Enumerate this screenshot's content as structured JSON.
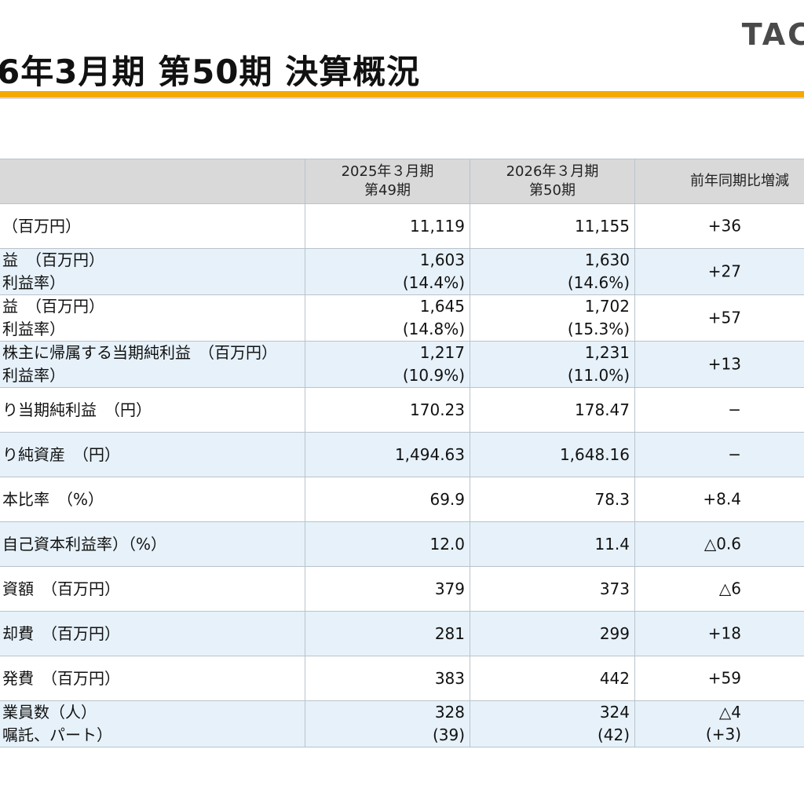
{
  "header": {
    "title": "6年3月期 第50期 決算概況",
    "logo_text": "TAC"
  },
  "table": {
    "columns": {
      "prev_line1": "2025年３月期",
      "prev_line2": "第49期",
      "curr_line1": "2026年３月期",
      "curr_line2": "第50期",
      "diff": "前年同期比増減"
    },
    "rows": [
      {
        "label": "（百万円）",
        "label2": "",
        "prev": "11,119",
        "prev2": "",
        "curr": "11,155",
        "curr2": "",
        "diff": "+36",
        "diff2": "",
        "diff_partial": "+"
      },
      {
        "label": "益　（百万円）",
        "label2": "利益率）",
        "prev": "1,603",
        "prev2": "(14.4%)",
        "curr": "1,630",
        "curr2": "(14.6%)",
        "diff": "+27",
        "diff2": "",
        "diff_partial": "+"
      },
      {
        "label": "益　（百万円）",
        "label2": "利益率）",
        "prev": "1,645",
        "prev2": "(14.8%)",
        "curr": "1,702",
        "curr2": "(15.3%)",
        "diff": "+57",
        "diff2": "",
        "diff_partial": "+"
      },
      {
        "label": "株主に帰属する当期純利益　（百万円）",
        "label2": "利益率）",
        "prev": "1,217",
        "prev2": "(10.9%)",
        "curr": "1,231",
        "curr2": "(11.0%)",
        "diff": "+13",
        "diff2": "",
        "diff_partial": "+"
      },
      {
        "label": "り当期純利益　（円）",
        "label2": "",
        "prev": "170.23",
        "prev2": "",
        "curr": "178.47",
        "curr2": "",
        "diff": "−",
        "diff2": "",
        "diff_partial": ""
      },
      {
        "label": "り純資産　（円）",
        "label2": "",
        "prev": "1,494.63",
        "prev2": "",
        "curr": "1,648.16",
        "curr2": "",
        "diff": "−",
        "diff2": "",
        "diff_partial": ""
      },
      {
        "label": "本比率　（%）",
        "label2": "",
        "prev": "69.9",
        "prev2": "",
        "curr": "78.3",
        "curr2": "",
        "diff": "+8.4",
        "diff2": "",
        "diff_partial": ""
      },
      {
        "label": "自己資本利益率）（%）",
        "label2": "",
        "prev": "12.0",
        "prev2": "",
        "curr": "11.4",
        "curr2": "",
        "diff": "△0.6",
        "diff2": "",
        "diff_partial": ""
      },
      {
        "label": "資額　（百万円）",
        "label2": "",
        "prev": "379",
        "prev2": "",
        "curr": "373",
        "curr2": "",
        "diff": "△6",
        "diff2": "",
        "diff_partial": ""
      },
      {
        "label": "却費　（百万円）",
        "label2": "",
        "prev": "281",
        "prev2": "",
        "curr": "299",
        "curr2": "",
        "diff": "+18",
        "diff2": "",
        "diff_partial": ""
      },
      {
        "label": "発費　（百万円）",
        "label2": "",
        "prev": "383",
        "prev2": "",
        "curr": "442",
        "curr2": "",
        "diff": "+59",
        "diff2": "",
        "diff_partial": ""
      },
      {
        "label": "業員数（人）",
        "label2": "嘱託、パート）",
        "prev": "328",
        "prev2": "(39)",
        "curr": "324",
        "curr2": "(42)",
        "diff": "△4",
        "diff2": "(+3)",
        "diff_partial": ""
      }
    ]
  }
}
